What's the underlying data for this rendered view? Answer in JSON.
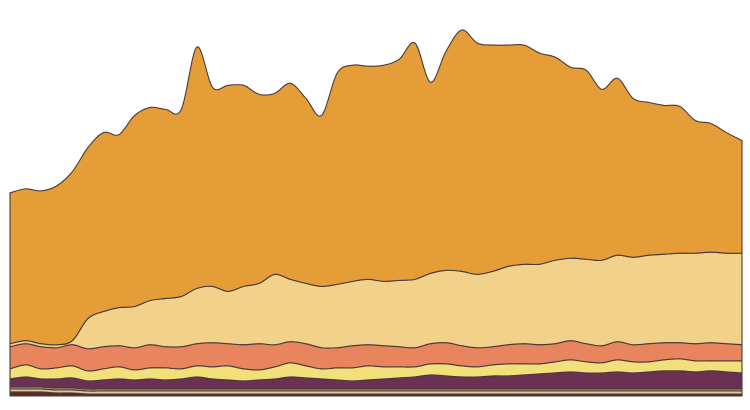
{
  "chart_data": {
    "type": "area",
    "variant": "streamgraph",
    "baseline": "bottom",
    "title": "",
    "xlabel": "",
    "ylabel": "",
    "axes_visible": false,
    "grid": false,
    "legend": "none",
    "x_count": 48,
    "series": [
      {
        "color": "#5c2b1e",
        "values": [
          4,
          4,
          4,
          3,
          3,
          2,
          2,
          2,
          2,
          2,
          2,
          2,
          2,
          2,
          2,
          2,
          2,
          2,
          2,
          2,
          2,
          2,
          2,
          2,
          2,
          2,
          2,
          2,
          2,
          2,
          2,
          2,
          2,
          2,
          2,
          2,
          2,
          2,
          2,
          2,
          2,
          2,
          2,
          2,
          2,
          2,
          2,
          2
        ]
      },
      {
        "color": "#d9c9a0",
        "values": [
          3,
          3,
          3,
          3,
          3,
          3,
          3,
          3,
          3,
          3,
          3,
          3,
          3,
          3,
          3,
          3,
          3,
          3,
          3,
          3,
          3,
          3,
          3,
          3,
          3,
          3,
          3,
          3,
          3,
          3,
          3,
          3,
          3,
          3,
          3,
          3,
          3,
          3,
          3,
          3,
          3,
          3,
          3,
          3,
          3,
          3,
          3,
          3
        ]
      },
      {
        "color": "#c3a06a",
        "values": [
          2,
          2,
          2,
          2,
          2,
          2,
          2,
          2,
          2,
          2,
          2,
          2,
          2,
          2,
          2,
          2,
          2,
          2,
          2,
          2,
          2,
          2,
          2,
          2,
          2,
          2,
          2,
          2,
          2,
          2,
          2,
          2,
          2,
          2,
          2,
          2,
          2,
          2,
          2,
          2,
          2,
          2,
          2,
          2,
          2,
          2,
          2,
          2
        ]
      },
      {
        "color": "#6b3152",
        "values": [
          8,
          10,
          8,
          9,
          10,
          8,
          9,
          10,
          9,
          10,
          9,
          10,
          12,
          10,
          9,
          8,
          9,
          10,
          12,
          11,
          10,
          9,
          8,
          9,
          10,
          11,
          12,
          14,
          13,
          12,
          12,
          13,
          13,
          14,
          15,
          16,
          17,
          16,
          16,
          17,
          16,
          17,
          18,
          18,
          17,
          18,
          17,
          16
        ]
      },
      {
        "color": "#f2e07a",
        "values": [
          10,
          12,
          10,
          11,
          12,
          10,
          11,
          12,
          10,
          11,
          12,
          10,
          11,
          12,
          14,
          12,
          10,
          12,
          14,
          12,
          10,
          12,
          13,
          14,
          12,
          11,
          10,
          11,
          12,
          11,
          10,
          11,
          12,
          11,
          10,
          11,
          12,
          11,
          10,
          12,
          11,
          10,
          11,
          12,
          11,
          10,
          11,
          12
        ]
      },
      {
        "color": "#e8855e",
        "values": [
          22,
          21,
          22,
          20,
          21,
          22,
          22,
          21,
          22,
          23,
          21,
          22,
          22,
          24,
          22,
          24,
          26,
          22,
          21,
          22,
          21,
          20,
          22,
          21,
          21,
          20,
          19,
          20,
          21,
          20,
          19,
          18,
          19,
          20,
          19,
          18,
          19,
          18,
          17,
          18,
          17,
          18,
          17,
          16,
          17,
          18,
          17,
          16
        ]
      },
      {
        "color": "#f2d28a",
        "values": [
          3,
          3,
          3,
          3,
          4,
          30,
          35,
          38,
          41,
          44,
          48,
          50,
          55,
          56,
          52,
          58,
          60,
          70,
          62,
          60,
          61,
          63,
          64,
          65,
          64,
          66,
          68,
          70,
          72,
          74,
          73,
          75,
          78,
          79,
          80,
          83,
          82,
          84,
          85,
          86,
          87,
          88,
          88,
          89,
          90,
          90,
          90,
          91
        ]
      },
      {
        "color": "#e59d37",
        "values": [
          150,
          151,
          152,
          158,
          168,
          170,
          178,
          172,
          190,
          192,
          188,
          186,
          240,
          198,
          205,
          200,
          188,
          180,
          195,
          184,
          170,
          210,
          215,
          212,
          215,
          220,
          235,
          190,
          218,
          240,
          230,
          225,
          220,
          218,
          210,
          202,
          190,
          188,
          170,
          176,
          158,
          152,
          148,
          146,
          132,
          128,
          120,
          112
        ]
      }
    ]
  }
}
